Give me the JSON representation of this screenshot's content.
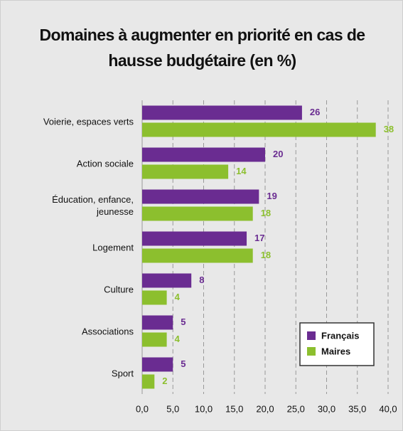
{
  "chart_data": {
    "type": "hbar",
    "title": "Domaines à augmenter en priorité en cas de hausse budgétaire (en %)",
    "categories": [
      "Voierie, espaces verts",
      "Action sociale",
      "Éducation, enfance, jeunesse",
      "Logement",
      "Culture",
      "Associations",
      "Sport"
    ],
    "series": [
      {
        "name": "Français",
        "color": "#6a2c91",
        "values": [
          26,
          20,
          19,
          17,
          8,
          5,
          5
        ]
      },
      {
        "name": "Maires",
        "color": "#8cbf2e",
        "values": [
          38,
          14,
          18,
          18,
          4,
          4,
          2
        ]
      }
    ],
    "xlim": [
      0,
      40
    ],
    "xticks": [
      {
        "value": 0,
        "label": "0,0"
      },
      {
        "value": 5,
        "label": "5,0"
      },
      {
        "value": 10,
        "label": "10,0"
      },
      {
        "value": 15,
        "label": "15,0"
      },
      {
        "value": 20,
        "label": "20,0"
      },
      {
        "value": 25,
        "label": "25,0"
      },
      {
        "value": 30,
        "label": "30,0"
      },
      {
        "value": 35,
        "label": "35,0"
      },
      {
        "value": 40,
        "label": "40,0"
      }
    ],
    "grid": true,
    "legend": "lower right"
  }
}
